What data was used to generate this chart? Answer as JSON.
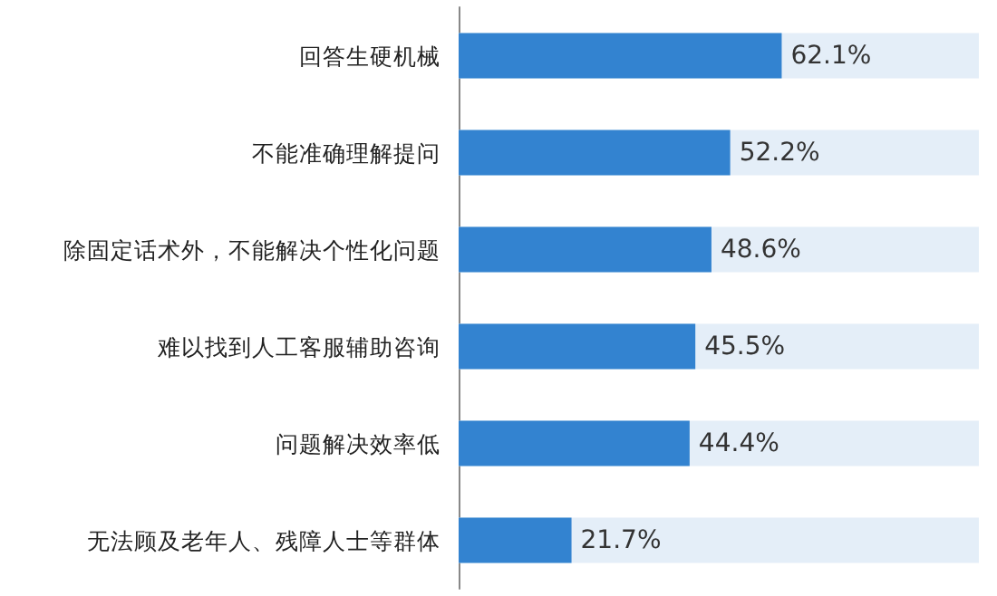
{
  "chart_data": {
    "type": "bar",
    "orientation": "horizontal",
    "categories": [
      "回答生硬机械",
      "不能准确理解提问",
      "除固定话术外，不能解决个性化问题",
      "难以找到人工客服辅助咨询",
      "问题解决效率低",
      "无法顾及老年人、残障人士等群体"
    ],
    "values": [
      62.1,
      52.2,
      48.6,
      45.5,
      44.4,
      21.7
    ],
    "value_labels": [
      "62.1%",
      "52.2%",
      "48.6%",
      "45.5%",
      "44.4%",
      "21.7%"
    ],
    "color": "#3383d0",
    "xlim": [
      0,
      100
    ],
    "tick_labels": "y"
  }
}
